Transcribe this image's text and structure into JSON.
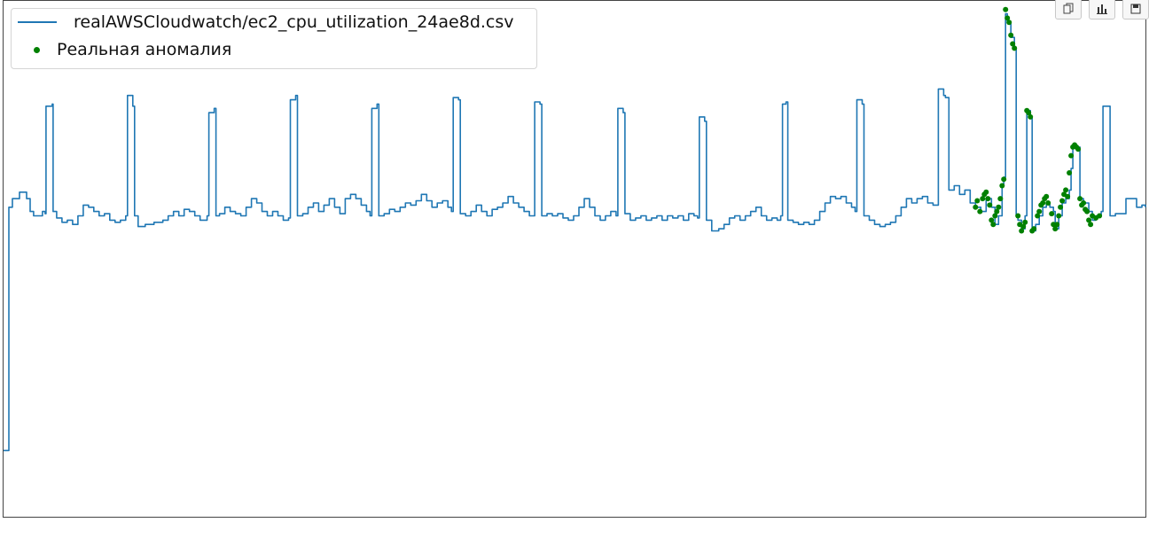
{
  "toolbar": {
    "buttons": [
      {
        "name": "copy",
        "icon": "copy-icon"
      },
      {
        "name": "chart",
        "icon": "bar-chart-icon"
      },
      {
        "name": "save",
        "icon": "save-icon"
      }
    ]
  },
  "chart_data": {
    "type": "line",
    "title": "",
    "xlabel": "",
    "ylabel": "",
    "xlim": [
      0,
      1290
    ],
    "ylim": [
      -10,
      110
    ],
    "grid": false,
    "legend_placement": "top-left",
    "series": [
      {
        "name": "realAWSCloudwatch/ec2_cpu_utilization_24ae8d.csv",
        "kind": "line",
        "color": "#1f77b4",
        "points": [
          [
            0,
            5.4
          ],
          [
            6,
            62
          ],
          [
            10,
            64
          ],
          [
            18,
            65.5
          ],
          [
            26,
            64
          ],
          [
            30,
            61
          ],
          [
            34,
            60
          ],
          [
            38,
            60
          ],
          [
            44,
            61
          ],
          [
            47,
            60.5
          ],
          [
            48,
            85.5
          ],
          [
            55,
            86
          ],
          [
            56,
            61
          ],
          [
            60,
            59.5
          ],
          [
            66,
            58.5
          ],
          [
            72,
            59
          ],
          [
            78,
            58
          ],
          [
            84,
            60
          ],
          [
            90,
            62.5
          ],
          [
            96,
            62
          ],
          [
            102,
            61
          ],
          [
            108,
            60
          ],
          [
            114,
            60.5
          ],
          [
            120,
            59
          ],
          [
            126,
            58.5
          ],
          [
            132,
            59
          ],
          [
            138,
            60
          ],
          [
            140,
            88
          ],
          [
            146,
            85.5
          ],
          [
            148,
            60
          ],
          [
            152,
            57.5
          ],
          [
            160,
            58
          ],
          [
            170,
            58.5
          ],
          [
            180,
            59
          ],
          [
            186,
            60
          ],
          [
            192,
            61
          ],
          [
            198,
            60
          ],
          [
            204,
            61.5
          ],
          [
            210,
            61
          ],
          [
            216,
            60
          ],
          [
            222,
            59
          ],
          [
            228,
            59
          ],
          [
            230,
            60
          ],
          [
            232,
            84
          ],
          [
            238,
            85
          ],
          [
            240,
            60
          ],
          [
            244,
            60.5
          ],
          [
            250,
            62
          ],
          [
            256,
            61
          ],
          [
            262,
            60.5
          ],
          [
            268,
            60
          ],
          [
            274,
            62
          ],
          [
            280,
            64
          ],
          [
            286,
            63
          ],
          [
            292,
            61
          ],
          [
            298,
            60
          ],
          [
            304,
            61
          ],
          [
            310,
            60
          ],
          [
            316,
            59
          ],
          [
            322,
            59.5
          ],
          [
            324,
            87
          ],
          [
            330,
            88
          ],
          [
            332,
            60
          ],
          [
            338,
            60.5
          ],
          [
            344,
            62
          ],
          [
            350,
            63
          ],
          [
            356,
            61
          ],
          [
            362,
            62.5
          ],
          [
            368,
            64
          ],
          [
            374,
            62
          ],
          [
            380,
            60.5
          ],
          [
            386,
            64
          ],
          [
            392,
            65
          ],
          [
            398,
            64
          ],
          [
            404,
            62.5
          ],
          [
            410,
            61
          ],
          [
            414,
            60
          ],
          [
            416,
            85
          ],
          [
            422,
            86
          ],
          [
            424,
            60
          ],
          [
            430,
            60.5
          ],
          [
            436,
            61.5
          ],
          [
            442,
            61
          ],
          [
            448,
            62
          ],
          [
            454,
            63
          ],
          [
            460,
            62.5
          ],
          [
            466,
            63.5
          ],
          [
            472,
            65
          ],
          [
            478,
            63.5
          ],
          [
            484,
            62
          ],
          [
            490,
            63
          ],
          [
            496,
            63.5
          ],
          [
            502,
            62
          ],
          [
            506,
            61
          ],
          [
            508,
            87.5
          ],
          [
            514,
            87
          ],
          [
            516,
            60.5
          ],
          [
            522,
            60
          ],
          [
            528,
            61
          ],
          [
            534,
            62.5
          ],
          [
            540,
            61
          ],
          [
            546,
            60
          ],
          [
            552,
            61.5
          ],
          [
            558,
            62
          ],
          [
            564,
            63
          ],
          [
            570,
            64.5
          ],
          [
            576,
            63
          ],
          [
            582,
            62
          ],
          [
            588,
            61
          ],
          [
            594,
            60
          ],
          [
            598,
            60
          ],
          [
            600,
            86.5
          ],
          [
            606,
            86
          ],
          [
            608,
            60
          ],
          [
            614,
            60.5
          ],
          [
            620,
            60
          ],
          [
            626,
            60.5
          ],
          [
            632,
            59.5
          ],
          [
            638,
            59
          ],
          [
            644,
            60
          ],
          [
            650,
            62
          ],
          [
            656,
            64
          ],
          [
            662,
            62
          ],
          [
            668,
            60
          ],
          [
            674,
            59
          ],
          [
            680,
            60
          ],
          [
            686,
            61
          ],
          [
            692,
            60
          ],
          [
            694,
            85
          ],
          [
            700,
            84
          ],
          [
            702,
            60.5
          ],
          [
            708,
            59
          ],
          [
            714,
            59.5
          ],
          [
            720,
            60
          ],
          [
            726,
            59
          ],
          [
            732,
            59.5
          ],
          [
            738,
            60
          ],
          [
            744,
            59
          ],
          [
            750,
            60
          ],
          [
            756,
            59.5
          ],
          [
            762,
            60
          ],
          [
            768,
            59
          ],
          [
            774,
            60.5
          ],
          [
            780,
            60
          ],
          [
            784,
            59.5
          ],
          [
            786,
            83
          ],
          [
            792,
            82
          ],
          [
            794,
            59
          ],
          [
            800,
            56.5
          ],
          [
            808,
            57
          ],
          [
            814,
            58
          ],
          [
            820,
            59.5
          ],
          [
            826,
            60
          ],
          [
            832,
            59
          ],
          [
            838,
            60
          ],
          [
            844,
            61
          ],
          [
            850,
            62
          ],
          [
            856,
            60
          ],
          [
            862,
            59
          ],
          [
            868,
            59.5
          ],
          [
            874,
            59
          ],
          [
            878,
            60
          ],
          [
            880,
            86
          ],
          [
            884,
            86.5
          ],
          [
            886,
            59
          ],
          [
            892,
            58.5
          ],
          [
            898,
            58
          ],
          [
            904,
            58.5
          ],
          [
            910,
            58
          ],
          [
            916,
            59
          ],
          [
            922,
            61
          ],
          [
            928,
            63
          ],
          [
            934,
            64.5
          ],
          [
            940,
            64
          ],
          [
            946,
            64.5
          ],
          [
            952,
            63
          ],
          [
            958,
            62
          ],
          [
            962,
            61
          ],
          [
            964,
            87
          ],
          [
            970,
            86
          ],
          [
            972,
            60
          ],
          [
            978,
            59
          ],
          [
            984,
            58
          ],
          [
            990,
            57.5
          ],
          [
            996,
            58
          ],
          [
            1002,
            58.5
          ],
          [
            1008,
            60
          ],
          [
            1014,
            62
          ],
          [
            1020,
            64
          ],
          [
            1026,
            63
          ],
          [
            1032,
            64
          ],
          [
            1038,
            64.5
          ],
          [
            1044,
            63
          ],
          [
            1050,
            62.5
          ],
          [
            1054,
            62.5
          ],
          [
            1056,
            89.5
          ],
          [
            1062,
            88
          ],
          [
            1064,
            87.5
          ],
          [
            1068,
            66
          ],
          [
            1074,
            67
          ],
          [
            1080,
            65
          ],
          [
            1086,
            66
          ],
          [
            1092,
            63
          ],
          [
            1098,
            62
          ],
          [
            1104,
            61
          ],
          [
            1110,
            64
          ],
          [
            1116,
            62
          ],
          [
            1120,
            58
          ],
          [
            1124,
            60
          ],
          [
            1128,
            67
          ],
          [
            1130,
            69
          ],
          [
            1132,
            107
          ],
          [
            1134,
            105
          ],
          [
            1138,
            101.5
          ],
          [
            1142,
            99
          ],
          [
            1144,
            60
          ],
          [
            1146,
            59
          ],
          [
            1150,
            57
          ],
          [
            1154,
            60
          ],
          [
            1156,
            84.5
          ],
          [
            1160,
            83
          ],
          [
            1162,
            56.5
          ],
          [
            1166,
            58
          ],
          [
            1170,
            60
          ],
          [
            1174,
            62
          ],
          [
            1178,
            63
          ],
          [
            1182,
            62
          ],
          [
            1186,
            61
          ],
          [
            1188,
            57
          ],
          [
            1192,
            60
          ],
          [
            1196,
            63
          ],
          [
            1200,
            64
          ],
          [
            1204,
            66
          ],
          [
            1206,
            71
          ],
          [
            1208,
            76
          ],
          [
            1214,
            76
          ],
          [
            1216,
            64
          ],
          [
            1220,
            63
          ],
          [
            1226,
            61
          ],
          [
            1230,
            59
          ],
          [
            1234,
            60
          ],
          [
            1240,
            61
          ],
          [
            1242,
            85.5
          ],
          [
            1248,
            85.5
          ],
          [
            1250,
            60
          ],
          [
            1256,
            60.5
          ],
          [
            1262,
            60.5
          ],
          [
            1268,
            64
          ],
          [
            1274,
            64
          ],
          [
            1280,
            62
          ],
          [
            1286,
            62.5
          ],
          [
            1290,
            62
          ]
        ]
      },
      {
        "name": "Реальная аномалия",
        "kind": "scatter",
        "color": "#008000",
        "points": [
          [
            1098,
            62
          ],
          [
            1100,
            63.5
          ],
          [
            1103,
            61
          ],
          [
            1106,
            64
          ],
          [
            1108,
            65
          ],
          [
            1110,
            65.5
          ],
          [
            1112,
            64
          ],
          [
            1114,
            62.5
          ],
          [
            1116,
            59
          ],
          [
            1118,
            58
          ],
          [
            1120,
            60
          ],
          [
            1122,
            61
          ],
          [
            1124,
            62
          ],
          [
            1126,
            64
          ],
          [
            1128,
            67
          ],
          [
            1130,
            68.5
          ],
          [
            1132,
            108
          ],
          [
            1134,
            106
          ],
          [
            1136,
            105
          ],
          [
            1138,
            102
          ],
          [
            1140,
            100
          ],
          [
            1142,
            99
          ],
          [
            1146,
            60
          ],
          [
            1148,
            58
          ],
          [
            1150,
            56.5
          ],
          [
            1152,
            57.5
          ],
          [
            1154,
            58.5
          ],
          [
            1156,
            84.5
          ],
          [
            1158,
            84
          ],
          [
            1160,
            83
          ],
          [
            1162,
            56.5
          ],
          [
            1164,
            57
          ],
          [
            1168,
            60
          ],
          [
            1170,
            61
          ],
          [
            1172,
            62.5
          ],
          [
            1174,
            63
          ],
          [
            1176,
            64
          ],
          [
            1178,
            64.5
          ],
          [
            1180,
            63
          ],
          [
            1184,
            60.5
          ],
          [
            1186,
            58
          ],
          [
            1188,
            57
          ],
          [
            1190,
            58
          ],
          [
            1192,
            60
          ],
          [
            1194,
            62
          ],
          [
            1196,
            63.5
          ],
          [
            1198,
            65
          ],
          [
            1200,
            66
          ],
          [
            1202,
            64.5
          ],
          [
            1204,
            70
          ],
          [
            1206,
            74
          ],
          [
            1208,
            76
          ],
          [
            1210,
            76.5
          ],
          [
            1212,
            76
          ],
          [
            1214,
            75.5
          ],
          [
            1216,
            64
          ],
          [
            1218,
            62.5
          ],
          [
            1220,
            63
          ],
          [
            1222,
            61.5
          ],
          [
            1224,
            61
          ],
          [
            1226,
            59
          ],
          [
            1228,
            58
          ],
          [
            1230,
            60
          ],
          [
            1234,
            59.5
          ],
          [
            1238,
            60
          ]
        ]
      }
    ]
  }
}
